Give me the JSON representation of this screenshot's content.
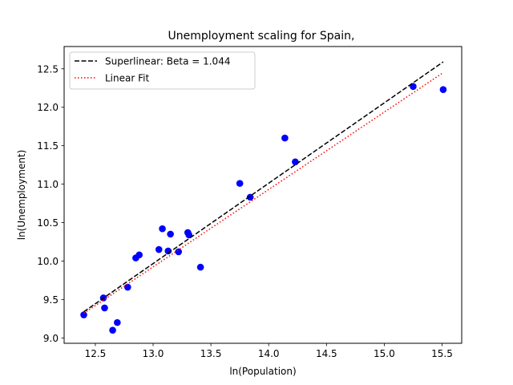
{
  "chart_data": {
    "type": "scatter",
    "title": "Unemployment scaling for Spain,",
    "xlabel": "ln(Population)",
    "ylabel": "ln(Unemployment)",
    "xlim": [
      12.23,
      15.67
    ],
    "ylim": [
      8.93,
      12.79
    ],
    "xticks": [
      "12.5",
      "13.0",
      "13.5",
      "14.0",
      "14.5",
      "15.0",
      "15.5"
    ],
    "yticks": [
      "9.0",
      "9.5",
      "10.0",
      "10.5",
      "11.0",
      "11.5",
      "12.0",
      "12.5"
    ],
    "grid": false,
    "legend_position": "top-left",
    "points": {
      "color": "#0000ff",
      "x": [
        12.4,
        12.57,
        12.58,
        12.65,
        12.69,
        12.78,
        12.85,
        12.88,
        13.05,
        13.08,
        13.13,
        13.15,
        13.22,
        13.3,
        13.31,
        13.41,
        13.75,
        13.84,
        14.14,
        14.23,
        15.25,
        15.51
      ],
      "y": [
        9.3,
        9.52,
        9.39,
        9.1,
        9.2,
        9.66,
        10.04,
        10.08,
        10.15,
        10.42,
        10.13,
        10.35,
        10.12,
        10.37,
        10.34,
        9.92,
        11.01,
        10.83,
        11.6,
        11.29,
        12.27,
        12.23
      ]
    },
    "series": [
      {
        "name": "Superlinear: Beta = 1.044",
        "style": "dashed",
        "color": "#000000",
        "x": [
          12.4,
          15.51
        ],
        "y": [
          9.34,
          12.59
        ]
      },
      {
        "name": "Linear Fit",
        "style": "dotted",
        "color": "#ff0000",
        "x": [
          12.4,
          15.51
        ],
        "y": [
          9.32,
          12.45
        ]
      }
    ]
  }
}
